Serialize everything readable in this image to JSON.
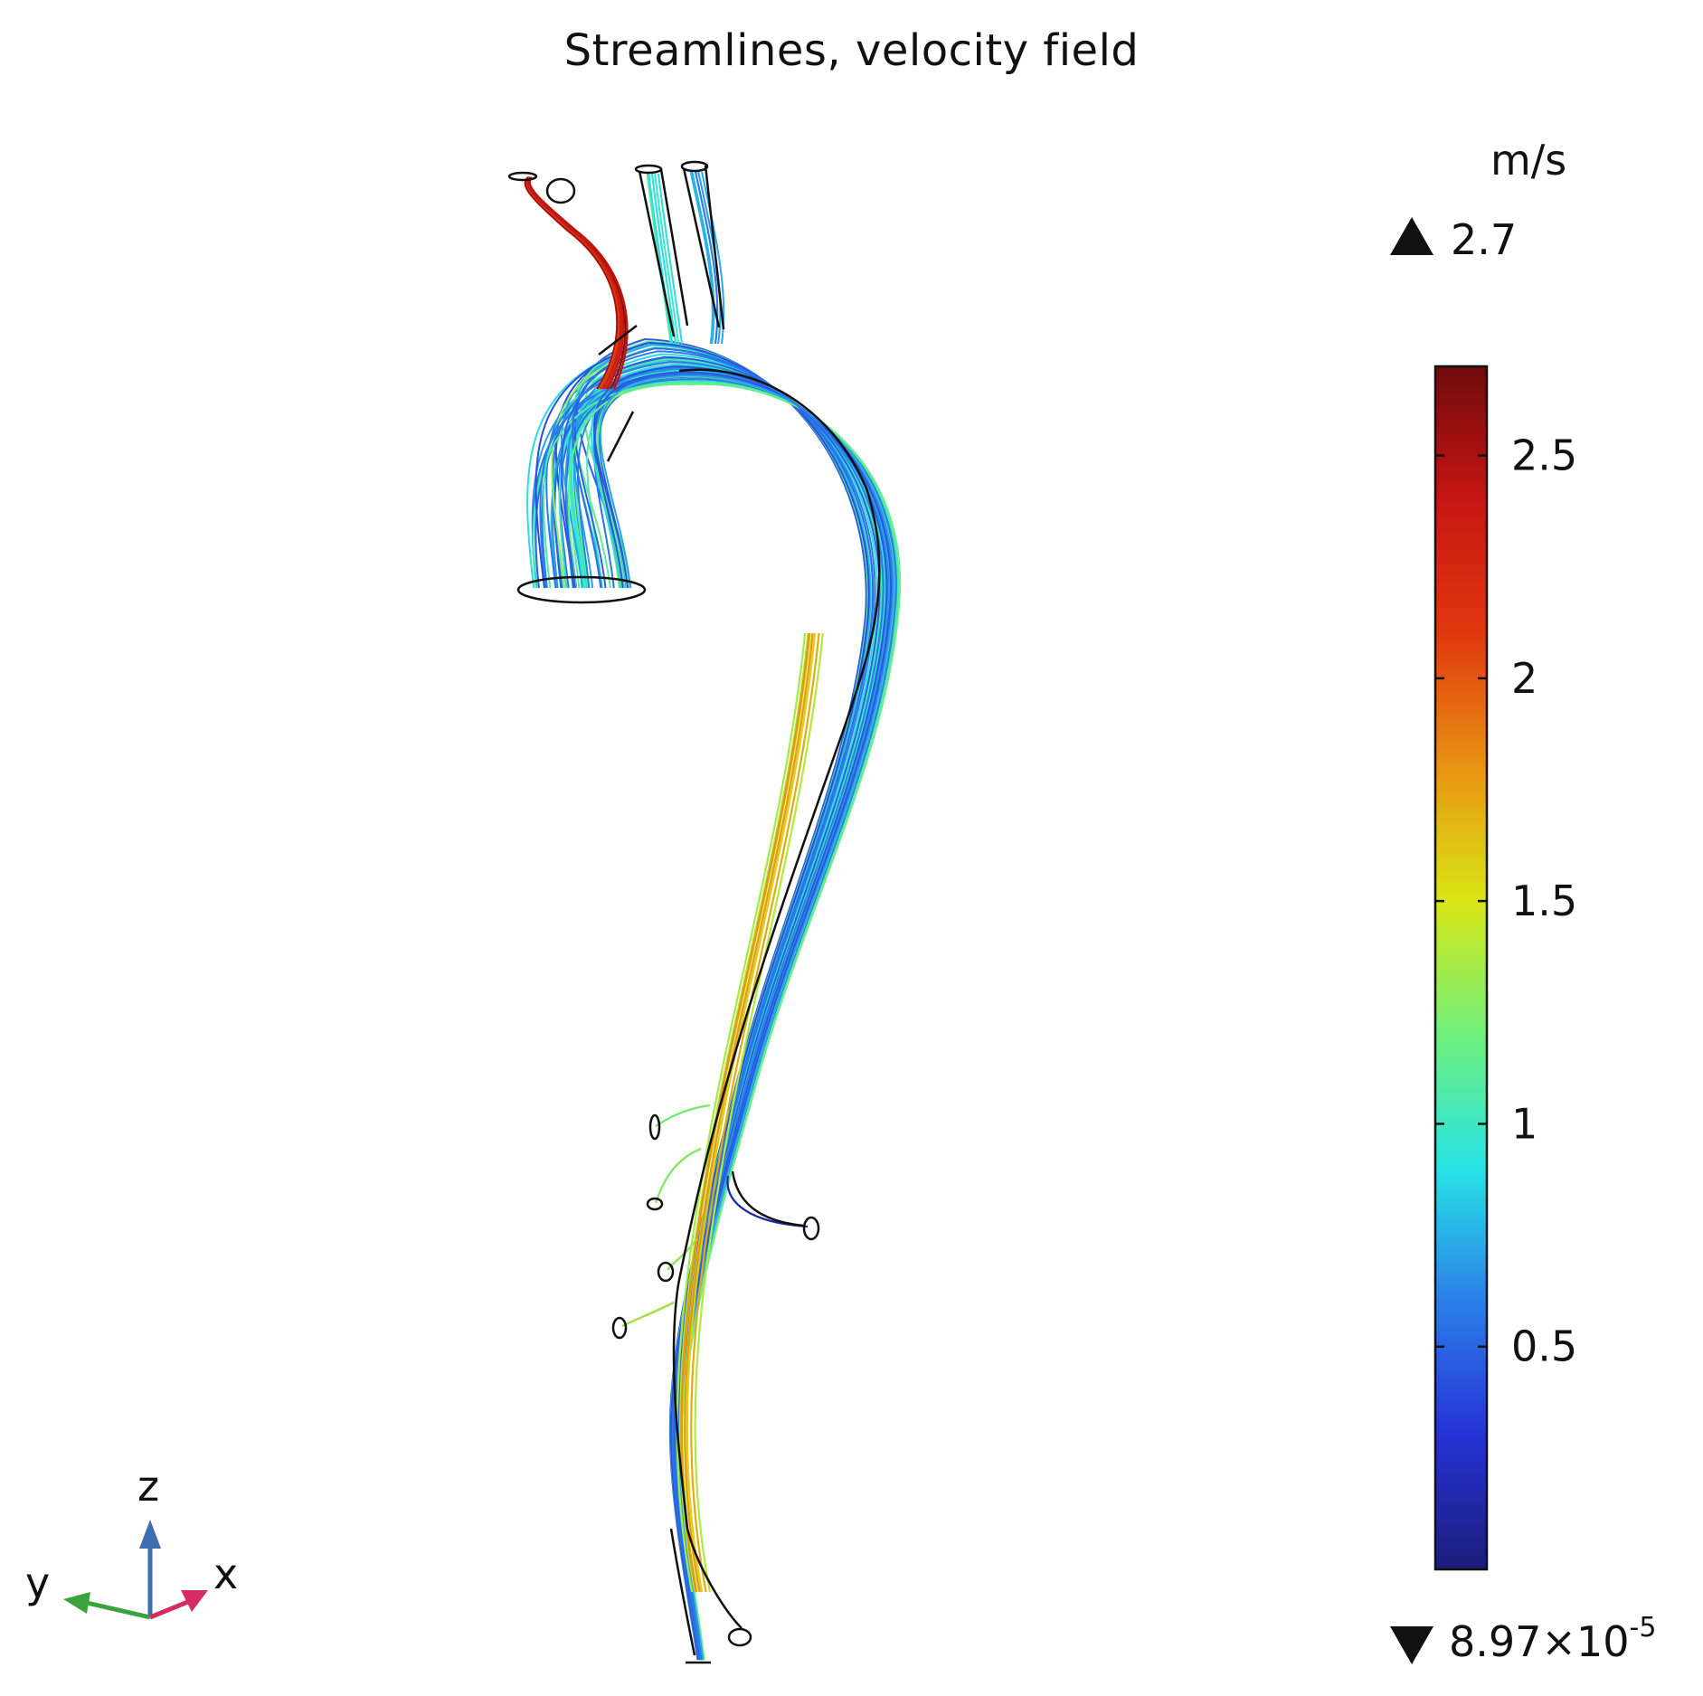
{
  "title": "Streamlines, velocity field",
  "chart_data": {
    "type": "streamlines",
    "title": "Streamlines, velocity field",
    "quantity": "velocity magnitude",
    "unit": "m/s",
    "colorbar": {
      "max": 2.7,
      "max_label": "2.7",
      "min": 8.97e-05,
      "min_label_mantissa": "8.97×10",
      "min_label_exponent": "-5",
      "ticks": [
        {
          "value": 2.5,
          "label": "2.5"
        },
        {
          "value": 2,
          "label": "2"
        },
        {
          "value": 1.5,
          "label": "1.5"
        },
        {
          "value": 1,
          "label": "1"
        },
        {
          "value": 0.5,
          "label": "0.5"
        }
      ],
      "colormap": "rainbow (jet)",
      "stops": [
        "#1b1d7a",
        "#2632d6",
        "#2a7fe8",
        "#27e3e6",
        "#6ff07c",
        "#d9e614",
        "#e99312",
        "#e0380f",
        "#c71612",
        "#6e0b0b"
      ]
    },
    "triad": {
      "axes": [
        "z",
        "y",
        "x"
      ],
      "z_color": "#3d6fb0",
      "y_color": "#3aa33d",
      "x_color": "#d42c63"
    }
  }
}
